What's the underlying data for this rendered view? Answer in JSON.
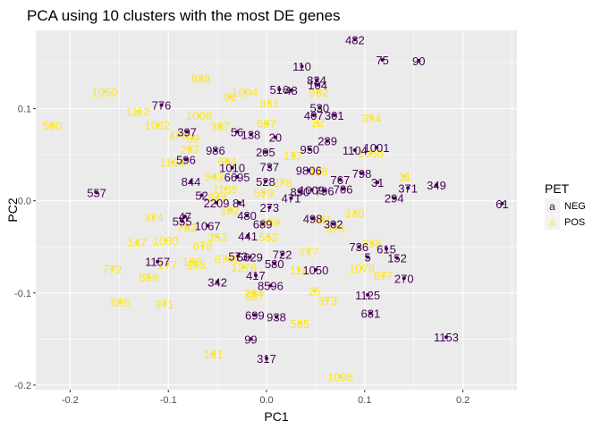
{
  "chart_data": {
    "type": "scatter",
    "title": "PCA using 10 clusters with the most DE genes",
    "xlabel": "PC1",
    "ylabel": "PC2",
    "xlim": [
      -0.235,
      0.255
    ],
    "ylim": [
      -0.205,
      0.185
    ],
    "x_ticks": [
      -0.2,
      -0.1,
      0.0,
      0.1,
      0.2
    ],
    "x_tick_labels": [
      "-0.2",
      "-0.1",
      "0.0",
      "0.1",
      "0.2"
    ],
    "y_ticks": [
      -0.2,
      -0.1,
      0.0,
      0.1
    ],
    "y_tick_labels": [
      "-0.2",
      "-0.1",
      "0.0",
      "0.1"
    ],
    "grid": true,
    "background": "#ebebeb",
    "legend": {
      "title": "PET",
      "position": "right",
      "key_glyph": "a",
      "entries": [
        {
          "label": "NEG",
          "color": "#440154"
        },
        {
          "label": "POS",
          "color": "#fde725"
        }
      ]
    },
    "series": [
      {
        "name": "NEG",
        "color": "#440154",
        "points": [
          {
            "label": "482",
            "x": 0.09,
            "y": 0.175
          },
          {
            "label": "75",
            "x": 0.118,
            "y": 0.153
          },
          {
            "label": "90",
            "x": 0.155,
            "y": 0.152
          },
          {
            "label": "110",
            "x": 0.036,
            "y": 0.146
          },
          {
            "label": "824",
            "x": 0.051,
            "y": 0.131
          },
          {
            "label": "104",
            "x": 0.052,
            "y": 0.126
          },
          {
            "label": "516",
            "x": 0.013,
            "y": 0.121
          },
          {
            "label": "48",
            "x": 0.025,
            "y": 0.12
          },
          {
            "label": "776",
            "x": -0.107,
            "y": 0.104
          },
          {
            "label": "530",
            "x": 0.054,
            "y": 0.101
          },
          {
            "label": "407",
            "x": 0.048,
            "y": 0.093
          },
          {
            "label": "301",
            "x": 0.069,
            "y": 0.093
          },
          {
            "label": "397",
            "x": -0.081,
            "y": 0.075
          },
          {
            "label": "56",
            "x": -0.03,
            "y": 0.075
          },
          {
            "label": "138",
            "x": -0.016,
            "y": 0.072
          },
          {
            "label": "20",
            "x": 0.009,
            "y": 0.069
          },
          {
            "label": "289",
            "x": 0.062,
            "y": 0.065
          },
          {
            "label": "986",
            "x": -0.052,
            "y": 0.055
          },
          {
            "label": "205",
            "x": -0.001,
            "y": 0.053
          },
          {
            "label": "950",
            "x": 0.044,
            "y": 0.056
          },
          {
            "label": "1104",
            "x": 0.09,
            "y": 0.055
          },
          {
            "label": "1001",
            "x": 0.112,
            "y": 0.058
          },
          {
            "label": "596",
            "x": -0.082,
            "y": 0.045
          },
          {
            "label": "1010",
            "x": -0.035,
            "y": 0.036
          },
          {
            "label": "737",
            "x": 0.003,
            "y": 0.037
          },
          {
            "label": "9806",
            "x": 0.043,
            "y": 0.033
          },
          {
            "label": "798",
            "x": 0.097,
            "y": 0.03
          },
          {
            "label": "767",
            "x": 0.075,
            "y": 0.023
          },
          {
            "label": "6695",
            "x": -0.03,
            "y": 0.026
          },
          {
            "label": "528",
            "x": -0.001,
            "y": 0.021
          },
          {
            "label": "844",
            "x": -0.077,
            "y": 0.021
          },
          {
            "label": "31",
            "x": 0.113,
            "y": 0.02
          },
          {
            "label": "371",
            "x": 0.144,
            "y": 0.014
          },
          {
            "label": "349",
            "x": 0.173,
            "y": 0.017
          },
          {
            "label": "706",
            "x": 0.078,
            "y": 0.013
          },
          {
            "label": "890",
            "x": 0.034,
            "y": 0.01
          },
          {
            "label": "796",
            "x": 0.059,
            "y": 0.011
          },
          {
            "label": "1009",
            "x": 0.046,
            "y": 0.012
          },
          {
            "label": "52",
            "x": -0.066,
            "y": 0.006
          },
          {
            "label": "294",
            "x": 0.13,
            "y": 0.003
          },
          {
            "label": "471",
            "x": 0.025,
            "y": 0.003
          },
          {
            "label": "61",
            "x": 0.24,
            "y": -0.003
          },
          {
            "label": "557",
            "x": -0.173,
            "y": 0.009
          },
          {
            "label": "2209",
            "x": -0.051,
            "y": -0.002
          },
          {
            "label": "84",
            "x": -0.028,
            "y": -0.002
          },
          {
            "label": "273",
            "x": 0.003,
            "y": -0.007
          },
          {
            "label": "480",
            "x": -0.02,
            "y": -0.016
          },
          {
            "label": "47",
            "x": -0.083,
            "y": -0.017
          },
          {
            "label": "498",
            "x": 0.047,
            "y": -0.019
          },
          {
            "label": "302",
            "x": 0.068,
            "y": -0.025
          },
          {
            "label": "555",
            "x": -0.086,
            "y": -0.022
          },
          {
            "label": "1067",
            "x": -0.06,
            "y": -0.027
          },
          {
            "label": "689",
            "x": -0.004,
            "y": -0.025
          },
          {
            "label": "441",
            "x": -0.019,
            "y": -0.038
          },
          {
            "label": "736",
            "x": 0.094,
            "y": -0.05
          },
          {
            "label": "615",
            "x": 0.122,
            "y": -0.052
          },
          {
            "label": "573",
            "x": -0.029,
            "y": -0.06
          },
          {
            "label": "5",
            "x": 0.103,
            "y": -0.061
          },
          {
            "label": "152",
            "x": 0.133,
            "y": -0.062
          },
          {
            "label": "1157",
            "x": -0.111,
            "y": -0.066
          },
          {
            "label": "5629",
            "x": -0.017,
            "y": -0.061
          },
          {
            "label": "722",
            "x": 0.016,
            "y": -0.058
          },
          {
            "label": "580",
            "x": 0.008,
            "y": -0.068
          },
          {
            "label": "1050",
            "x": 0.05,
            "y": -0.075
          },
          {
            "label": "417",
            "x": -0.011,
            "y": -0.081
          },
          {
            "label": "342",
            "x": -0.05,
            "y": -0.088
          },
          {
            "label": "270",
            "x": 0.14,
            "y": -0.084
          },
          {
            "label": "8596",
            "x": 0.004,
            "y": -0.092
          },
          {
            "label": "1125",
            "x": 0.103,
            "y": -0.102
          },
          {
            "label": "699",
            "x": -0.012,
            "y": -0.124
          },
          {
            "label": "938",
            "x": 0.01,
            "y": -0.126
          },
          {
            "label": "681",
            "x": 0.106,
            "y": -0.122
          },
          {
            "label": "99",
            "x": -0.016,
            "y": -0.15
          },
          {
            "label": "1153",
            "x": 0.183,
            "y": -0.148
          },
          {
            "label": "317",
            "x": 0.0,
            "y": -0.171
          }
        ]
      },
      {
        "name": "POS",
        "color": "#fde725",
        "points": [
          {
            "label": "838",
            "x": -0.067,
            "y": 0.133
          },
          {
            "label": "1050",
            "x": -0.165,
            "y": 0.118
          },
          {
            "label": "1094",
            "x": -0.022,
            "y": 0.118
          },
          {
            "label": "91",
            "x": -0.037,
            "y": 0.113
          },
          {
            "label": "982",
            "x": 0.053,
            "y": 0.118
          },
          {
            "label": "851",
            "x": 0.003,
            "y": 0.106
          },
          {
            "label": "1112",
            "x": -0.131,
            "y": 0.097
          },
          {
            "label": "1066",
            "x": -0.069,
            "y": 0.093
          },
          {
            "label": "354",
            "x": 0.107,
            "y": 0.09
          },
          {
            "label": "580",
            "x": -0.218,
            "y": 0.082
          },
          {
            "label": "1062",
            "x": -0.111,
            "y": 0.082
          },
          {
            "label": "387",
            "x": -0.047,
            "y": 0.081
          },
          {
            "label": "587",
            "x": 0.0,
            "y": 0.084
          },
          {
            "label": "12",
            "x": 0.052,
            "y": 0.085
          },
          {
            "label": "479",
            "x": -0.09,
            "y": 0.071
          },
          {
            "label": "69",
            "x": -0.075,
            "y": 0.068
          },
          {
            "label": "207",
            "x": -0.078,
            "y": 0.056
          },
          {
            "label": "1164",
            "x": -0.096,
            "y": 0.042
          },
          {
            "label": "664",
            "x": -0.04,
            "y": 0.043
          },
          {
            "label": "943",
            "x": -0.053,
            "y": 0.027
          },
          {
            "label": "137",
            "x": 0.027,
            "y": 0.049
          },
          {
            "label": "118",
            "x": 0.053,
            "y": 0.032
          },
          {
            "label": "1066",
            "x": 0.106,
            "y": 0.052
          },
          {
            "label": "11",
            "x": 0.141,
            "y": 0.027
          },
          {
            "label": "278",
            "x": 0.016,
            "y": 0.02
          },
          {
            "label": "1135",
            "x": -0.042,
            "y": 0.013
          },
          {
            "label": "599",
            "x": -0.003,
            "y": 0.009
          },
          {
            "label": "102",
            "x": -0.037,
            "y": -0.01
          },
          {
            "label": "844",
            "x": -0.05,
            "y": 0.004
          },
          {
            "label": "374",
            "x": -0.115,
            "y": -0.018
          },
          {
            "label": "130",
            "x": 0.09,
            "y": -0.013
          },
          {
            "label": "959",
            "x": 0.004,
            "y": -0.023
          },
          {
            "label": "361",
            "x": 0.057,
            "y": -0.02
          },
          {
            "label": "782",
            "x": -0.081,
            "y": -0.029
          },
          {
            "label": "353",
            "x": -0.05,
            "y": -0.039
          },
          {
            "label": "552",
            "x": 0.002,
            "y": -0.039
          },
          {
            "label": "376",
            "x": 0.07,
            "y": -0.03
          },
          {
            "label": "147",
            "x": -0.132,
            "y": -0.045
          },
          {
            "label": "1080",
            "x": -0.103,
            "y": -0.043
          },
          {
            "label": "678",
            "x": -0.065,
            "y": -0.049
          },
          {
            "label": "338",
            "x": 0.107,
            "y": -0.046
          },
          {
            "label": "777",
            "x": 0.043,
            "y": -0.055
          },
          {
            "label": "108",
            "x": -0.076,
            "y": -0.066
          },
          {
            "label": "6748",
            "x": -0.04,
            "y": -0.063
          },
          {
            "label": "772",
            "x": -0.157,
            "y": -0.074
          },
          {
            "label": "177",
            "x": -0.101,
            "y": -0.069
          },
          {
            "label": "183",
            "x": -0.072,
            "y": -0.069
          },
          {
            "label": "1276",
            "x": -0.023,
            "y": -0.072
          },
          {
            "label": "1079",
            "x": 0.097,
            "y": -0.073
          },
          {
            "label": "877",
            "x": 0.119,
            "y": -0.081
          },
          {
            "label": "114",
            "x": 0.033,
            "y": -0.075
          },
          {
            "label": "858",
            "x": -0.12,
            "y": -0.083
          },
          {
            "label": "25",
            "x": 0.049,
            "y": -0.098
          },
          {
            "label": "294",
            "x": -0.013,
            "y": -0.1
          },
          {
            "label": "887",
            "x": -0.012,
            "y": -0.103
          },
          {
            "label": "373",
            "x": 0.062,
            "y": -0.108
          },
          {
            "label": "885",
            "x": -0.149,
            "y": -0.11
          },
          {
            "label": "971",
            "x": -0.104,
            "y": -0.112
          },
          {
            "label": "585",
            "x": 0.034,
            "y": -0.133
          },
          {
            "label": "161",
            "x": -0.054,
            "y": -0.166
          },
          {
            "label": "1096",
            "x": 0.075,
            "y": -0.191
          }
        ]
      }
    ]
  }
}
